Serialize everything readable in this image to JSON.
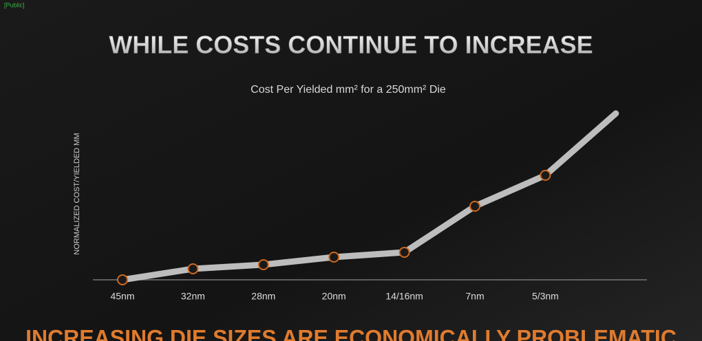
{
  "tag": "[Public]",
  "chart_data": {
    "type": "line",
    "title": "WHILE COSTS CONTINUE TO INCREASE",
    "subtitle": "Cost Per Yielded mm² for a 250mm² Die",
    "y_label": "NORMALIZED COST/YIELDED MM",
    "categories": [
      "45nm",
      "32nm",
      "28nm",
      "20nm",
      "14/16nm",
      "7nm",
      "5/3nm",
      null
    ],
    "values": [
      0,
      16,
      22,
      33,
      40,
      107,
      152,
      242
    ],
    "color": "#bdbdbd",
    "marker_color": "#d2691e",
    "ylim": [
      0,
      260
    ]
  },
  "footer": "INCREASING DIE SIZES ARE ECONOMICALLY PROBLEMATIC"
}
